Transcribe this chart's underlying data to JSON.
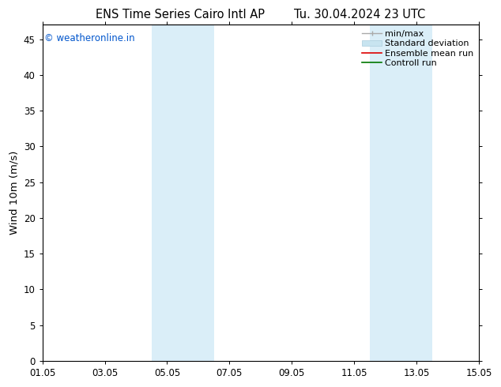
{
  "title_left": "ENS Time Series Cairo Intl AP",
  "title_right": "Tu. 30.04.2024 23 UTC",
  "ylabel": "Wind 10m (m/s)",
  "xlabel_ticks": [
    "01.05",
    "03.05",
    "05.05",
    "07.05",
    "09.05",
    "11.05",
    "13.05",
    "15.05"
  ],
  "xtick_positions": [
    0,
    2,
    4,
    6,
    8,
    10,
    12,
    14
  ],
  "xlim": [
    0,
    14
  ],
  "ylim": [
    0,
    47
  ],
  "yticks": [
    0,
    5,
    10,
    15,
    20,
    25,
    30,
    35,
    40,
    45
  ],
  "background_color": "#ffffff",
  "plot_bg_color": "#ffffff",
  "shaded_bands": [
    {
      "x_start": 3.5,
      "x_end": 5.5,
      "color": "#daeef8"
    },
    {
      "x_start": 10.5,
      "x_end": 12.5,
      "color": "#daeef8"
    }
  ],
  "watermark_text": "© weatheronline.in",
  "watermark_color": "#0055cc",
  "tick_label_fontsize": 8.5,
  "axis_label_fontsize": 9.5,
  "title_fontsize": 10.5,
  "legend_fontsize": 8.0,
  "top_line_y": 47,
  "legend_gray": "#aaaaaa",
  "legend_lightblue": "#c8e4f0",
  "legend_red": "#dd0000",
  "legend_green": "#007700"
}
